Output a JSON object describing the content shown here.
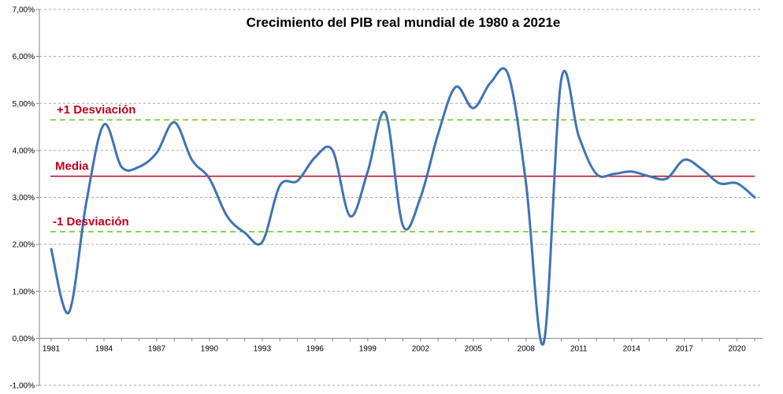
{
  "chart_data": {
    "type": "line",
    "title": "Crecimiento del PIB real mundial de 1980 a 2021e",
    "xlabel": "",
    "ylabel": "",
    "ylim": [
      -1,
      7
    ],
    "y_ticks": [
      "-1,00%",
      "0,00%",
      "1,00%",
      "2,00%",
      "3,00%",
      "4,00%",
      "5,00%",
      "6,00%",
      "7,00%"
    ],
    "y_tick_values": [
      -1,
      0,
      1,
      2,
      3,
      4,
      5,
      6,
      7
    ],
    "x_ticks": [
      "1981",
      "1984",
      "1987",
      "1990",
      "1993",
      "1996",
      "1999",
      "2002",
      "2005",
      "2008",
      "2011",
      "2014",
      "2017",
      "2020"
    ],
    "x_tick_values": [
      1981,
      1984,
      1987,
      1990,
      1993,
      1996,
      1999,
      2002,
      2005,
      2008,
      2011,
      2014,
      2017,
      2020
    ],
    "grid": true,
    "series": [
      {
        "name": "",
        "color": "#3f73b4",
        "x": [
          1981,
          1982,
          1983,
          1984,
          1985,
          1986,
          1987,
          1988,
          1989,
          1990,
          1991,
          1992,
          1993,
          1994,
          1995,
          1996,
          1997,
          1998,
          1999,
          2000,
          2001,
          2002,
          2003,
          2004,
          2005,
          2006,
          2007,
          2008,
          2009,
          2010,
          2011,
          2012,
          2013,
          2014,
          2015,
          2016,
          2017,
          2018,
          2019,
          2020,
          2021
        ],
        "y": [
          1.9,
          0.55,
          2.9,
          4.55,
          3.65,
          3.65,
          3.95,
          4.6,
          3.8,
          3.4,
          2.6,
          2.25,
          2.05,
          3.25,
          3.35,
          3.85,
          4.0,
          2.6,
          3.55,
          4.8,
          2.4,
          3.0,
          4.35,
          5.35,
          4.9,
          5.45,
          5.6,
          3.3,
          -0.1,
          5.5,
          4.3,
          3.5,
          3.5,
          3.55,
          3.45,
          3.4,
          3.8,
          3.6,
          3.3,
          3.3,
          3.0
        ]
      }
    ],
    "reference_lines": [
      {
        "label": "+1 Desviación",
        "value": 4.65,
        "color": "#92d050",
        "style": "dashed",
        "label_color": "#c0001c"
      },
      {
        "label": "Media",
        "value": 3.45,
        "color": "#c0001c",
        "style": "solid",
        "label_color": "#c0001c"
      },
      {
        "label": "-1 Desviación",
        "value": 2.27,
        "color": "#92d050",
        "style": "dashed",
        "label_color": "#c0001c"
      }
    ]
  }
}
